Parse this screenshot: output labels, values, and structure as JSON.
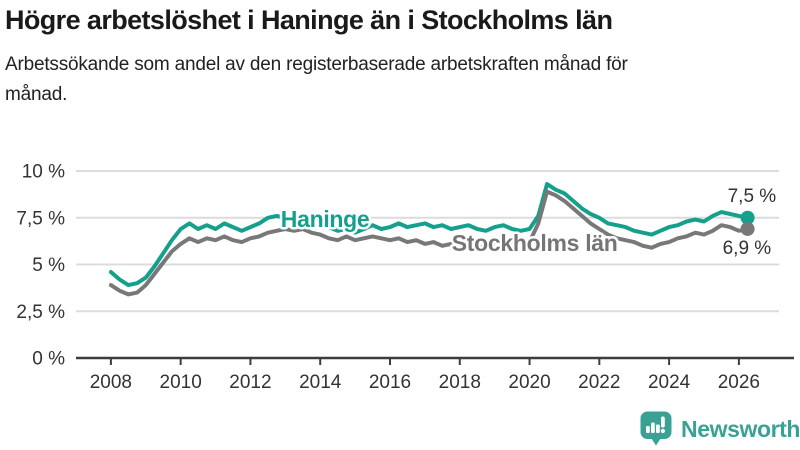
{
  "header": {
    "title": "Högre arbetslöshet i Haninge än i Stockholms län",
    "subtitle": "Arbetssökande som andel av den registerbaserade arbetskraften månad för månad."
  },
  "chart_data": {
    "type": "line",
    "x_start": 2008,
    "x_step": 0.25,
    "xlim": [
      2007,
      2027.15
    ],
    "ylim": [
      0,
      10
    ],
    "grid": true,
    "legend_position": "inline-labels",
    "x_ticks": [
      {
        "value": 2008,
        "label": "2008"
      },
      {
        "value": 2010,
        "label": "2010"
      },
      {
        "value": 2012,
        "label": "2012"
      },
      {
        "value": 2014,
        "label": "2014"
      },
      {
        "value": 2016,
        "label": "2016"
      },
      {
        "value": 2018,
        "label": "2018"
      },
      {
        "value": 2020,
        "label": "2020"
      },
      {
        "value": 2022,
        "label": "2022"
      },
      {
        "value": 2024,
        "label": "2024"
      },
      {
        "value": 2026,
        "label": "2026"
      }
    ],
    "y_ticks": [
      {
        "value": 0,
        "label": "0 %"
      },
      {
        "value": 2.5,
        "label": "2,5 %"
      },
      {
        "value": 5,
        "label": "5 %"
      },
      {
        "value": 7.5,
        "label": "7,5 %"
      },
      {
        "value": 10,
        "label": "10 %"
      }
    ],
    "series": [
      {
        "name": "Haninge",
        "color": "#14a08c",
        "end_label": "7,5 %",
        "last_value": 7.5,
        "values": [
          4.6,
          4.2,
          3.9,
          4.0,
          4.3,
          4.9,
          5.6,
          6.3,
          6.9,
          7.2,
          6.9,
          7.1,
          6.9,
          7.2,
          7.0,
          6.8,
          7.0,
          7.2,
          7.5,
          7.6,
          7.5,
          7.6,
          7.4,
          7.3,
          7.2,
          7.0,
          6.8,
          6.9,
          6.7,
          6.9,
          7.1,
          6.9,
          7.0,
          7.2,
          7.0,
          7.1,
          7.2,
          7.0,
          7.1,
          6.9,
          7.0,
          7.1,
          6.9,
          6.8,
          7.0,
          7.1,
          6.9,
          6.8,
          6.9,
          7.6,
          9.3,
          9.0,
          8.8,
          8.4,
          8.0,
          7.7,
          7.5,
          7.2,
          7.1,
          7.0,
          6.8,
          6.7,
          6.6,
          6.8,
          7.0,
          7.1,
          7.3,
          7.4,
          7.3,
          7.6,
          7.8,
          7.7,
          7.6,
          7.5
        ]
      },
      {
        "name": "Stockholms län",
        "color": "#787878",
        "end_label": "6,9 %",
        "last_value": 6.9,
        "values": [
          3.9,
          3.6,
          3.4,
          3.5,
          3.9,
          4.5,
          5.1,
          5.7,
          6.1,
          6.4,
          6.2,
          6.4,
          6.3,
          6.5,
          6.3,
          6.2,
          6.4,
          6.5,
          6.7,
          6.8,
          6.9,
          6.8,
          6.9,
          6.7,
          6.6,
          6.4,
          6.3,
          6.5,
          6.3,
          6.4,
          6.5,
          6.4,
          6.3,
          6.4,
          6.2,
          6.3,
          6.1,
          6.2,
          6.0,
          6.1,
          6.2,
          6.0,
          5.9,
          6.0,
          6.1,
          6.2,
          6.1,
          6.0,
          6.2,
          7.2,
          8.9,
          8.7,
          8.4,
          8.0,
          7.6,
          7.2,
          6.9,
          6.6,
          6.4,
          6.3,
          6.2,
          6.0,
          5.9,
          6.1,
          6.2,
          6.4,
          6.5,
          6.7,
          6.6,
          6.8,
          7.1,
          7.0,
          6.8,
          6.9
        ]
      }
    ],
    "annotations": [
      {
        "text": "Haninge",
        "x": 2012.87,
        "y": 7.0,
        "color": "#14a08c"
      },
      {
        "text": "Stockholms län",
        "x": 2017.77,
        "y": 5.72,
        "color": "#757575"
      }
    ],
    "axis_color": "#3d3d3d",
    "grid_color": "#dcdcdc",
    "tick_label_color": "#333333",
    "end_label_color": "#333333"
  },
  "footer": {
    "brand": "Newsworthy",
    "brand_color": "#3aa295",
    "logo_icon": "bar-chart-speech-bubble-icon"
  }
}
